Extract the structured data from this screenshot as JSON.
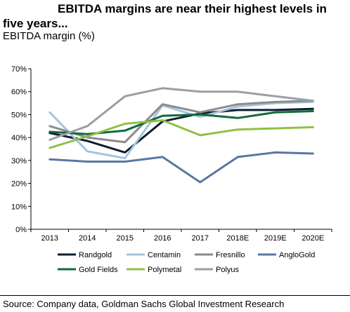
{
  "header": {
    "title": "EBITDA margins are near their highest levels in five years...",
    "subtitle": "EBITDA margin (%)"
  },
  "footer": {
    "source": "Source: Company data, Goldman Sachs Global Investment Research"
  },
  "chart_data": {
    "type": "line",
    "title": "EBITDA margins are near their highest levels in five years...",
    "ylabel": "EBITDA margin (%)",
    "xlabel": "",
    "x": [
      "2013",
      "2014",
      "2015",
      "2016",
      "2017",
      "2018E",
      "2019E",
      "2020E"
    ],
    "ylim": [
      0,
      70
    ],
    "yticks": [
      0,
      10,
      20,
      30,
      40,
      50,
      60,
      70
    ],
    "ytick_labels": [
      "0%",
      "10%",
      "20%",
      "30%",
      "40%",
      "50%",
      "60%",
      "70%"
    ],
    "grid": false,
    "legend_position": "bottom",
    "series": [
      {
        "name": "Randgold",
        "color": "#0d1d33",
        "values": [
          42,
          38.5,
          33.5,
          47,
          50.5,
          52,
          52,
          52.5
        ]
      },
      {
        "name": "Centamin",
        "color": "#a6c4de",
        "values": [
          51,
          34,
          31,
          54,
          49,
          53.5,
          55,
          55.5
        ]
      },
      {
        "name": "Fresnillo",
        "color": "#8d8b8c",
        "values": [
          45,
          40,
          38,
          54.5,
          51,
          54.5,
          55.5,
          56
        ]
      },
      {
        "name": "AngloGold",
        "color": "#5878a0",
        "values": [
          30.5,
          29.5,
          29.5,
          31.5,
          20.5,
          31.5,
          33.5,
          33
        ]
      },
      {
        "name": "Gold Fields",
        "color": "#0f6b3c",
        "values": [
          42.5,
          41.5,
          43,
          49.5,
          50,
          48.5,
          51,
          51.5
        ]
      },
      {
        "name": "Polymetal",
        "color": "#8fc045",
        "values": [
          35.5,
          40.5,
          46,
          47.5,
          41,
          43.5,
          44,
          44.5
        ]
      },
      {
        "name": "Polyus",
        "color": "#9c9ea6",
        "values": [
          39,
          45,
          58,
          61.5,
          60,
          60,
          58,
          56
        ]
      }
    ]
  }
}
